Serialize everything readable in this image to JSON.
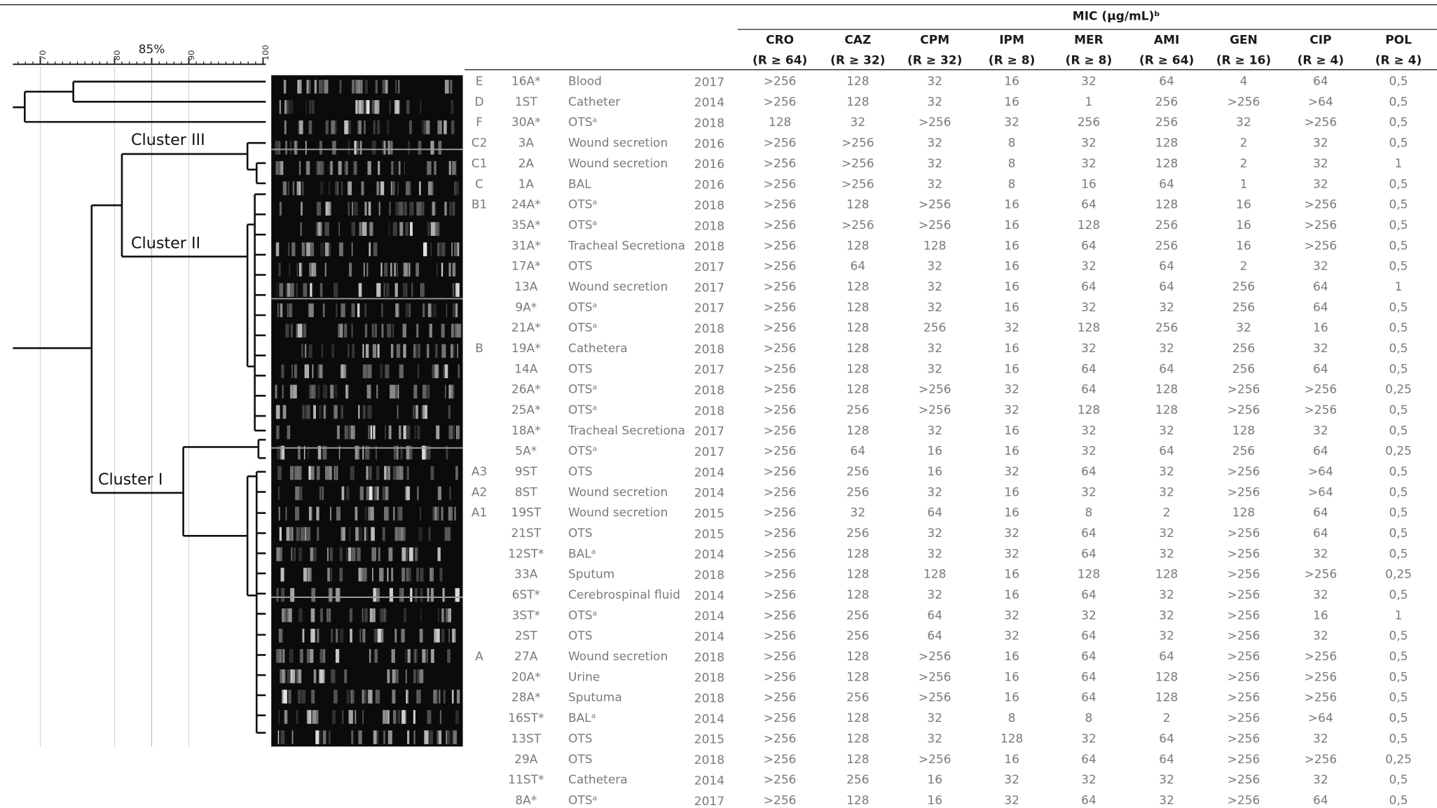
{
  "header": {
    "mic_title": "MIC (µg/mL)ᵇ",
    "columns": [
      {
        "name": "CRO",
        "breakpoint": "(R ≥ 64)"
      },
      {
        "name": "CAZ",
        "breakpoint": "(R ≥ 32)"
      },
      {
        "name": "CPM",
        "breakpoint": "(R ≥ 32)"
      },
      {
        "name": "IPM",
        "breakpoint": "(R ≥ 8)"
      },
      {
        "name": "MER",
        "breakpoint": "(R ≥ 8)"
      },
      {
        "name": "AMI",
        "breakpoint": "(R ≥ 64)"
      },
      {
        "name": "GEN",
        "breakpoint": "(R ≥ 16)"
      },
      {
        "name": "CIP",
        "breakpoint": "(R ≥ 4)"
      },
      {
        "name": "POL",
        "breakpoint": "(R ≥ 4)"
      }
    ]
  },
  "dendrogram": {
    "scale_ticks": [
      70,
      80,
      {
        "value": 85,
        "label": "85%"
      },
      90,
      100
    ],
    "clusters": [
      "Cluster III",
      "Cluster II",
      "Cluster I"
    ]
  },
  "rows": [
    {
      "cluster": "E",
      "isolate": "16A*",
      "source": "Blood",
      "year": 2017,
      "mic": [
        ">256",
        "128",
        "32",
        "16",
        "32",
        "64",
        "4",
        "64",
        "0,5"
      ]
    },
    {
      "cluster": "D",
      "isolate": "1ST",
      "source": "Catheter",
      "year": 2014,
      "mic": [
        ">256",
        "128",
        "32",
        "16",
        "1",
        "256",
        ">256",
        ">64",
        "0,5"
      ]
    },
    {
      "cluster": "F",
      "isolate": "30A*",
      "source": "OTSᵃ",
      "year": 2018,
      "mic": [
        "128",
        "32",
        ">256",
        "32",
        "256",
        "256",
        "32",
        ">256",
        "0,5"
      ]
    },
    {
      "cluster": "C2",
      "isolate": "3A",
      "source": "Wound secretion",
      "year": 2016,
      "mic": [
        ">256",
        ">256",
        "32",
        "8",
        "32",
        "128",
        "2",
        "32",
        "0,5"
      ]
    },
    {
      "cluster": "C1",
      "isolate": "2A",
      "source": "Wound secretion",
      "year": 2016,
      "mic": [
        ">256",
        ">256",
        "32",
        "8",
        "32",
        "128",
        "2",
        "32",
        "1"
      ]
    },
    {
      "cluster": "C",
      "isolate": "1A",
      "source": "BAL",
      "year": 2016,
      "mic": [
        ">256",
        ">256",
        "32",
        "8",
        "16",
        "64",
        "1",
        "32",
        "0,5"
      ]
    },
    {
      "cluster": "B1",
      "isolate": "24A*",
      "source": "OTSᵃ",
      "year": 2018,
      "mic": [
        ">256",
        "128",
        ">256",
        "16",
        "64",
        "128",
        "16",
        ">256",
        "0,5"
      ]
    },
    {
      "isolate": "35A*",
      "source": "OTSᵃ",
      "year": 2018,
      "mic": [
        ">256",
        ">256",
        ">256",
        "16",
        "128",
        "256",
        "16",
        ">256",
        "0,5"
      ]
    },
    {
      "isolate": "31A*",
      "source": "Tracheal Secretiona",
      "year": 2018,
      "mic": [
        ">256",
        "128",
        "128",
        "16",
        "64",
        "256",
        "16",
        ">256",
        "0,5"
      ]
    },
    {
      "isolate": "17A*",
      "source": "OTS",
      "year": 2017,
      "mic": [
        ">256",
        "64",
        "32",
        "16",
        "32",
        "64",
        "2",
        "32",
        "0,5"
      ]
    },
    {
      "isolate": "13A",
      "source": "Wound secretion",
      "year": 2017,
      "mic": [
        ">256",
        "128",
        "32",
        "16",
        "64",
        "64",
        "256",
        "64",
        "1"
      ]
    },
    {
      "isolate": "9A*",
      "source": "OTSᵃ",
      "year": 2017,
      "mic": [
        ">256",
        "128",
        "32",
        "16",
        "32",
        "32",
        "256",
        "64",
        "0,5"
      ]
    },
    {
      "isolate": "21A*",
      "source": "OTSᵃ",
      "year": 2018,
      "mic": [
        ">256",
        "128",
        "256",
        "32",
        "128",
        "256",
        "32",
        "16",
        "0,5"
      ]
    },
    {
      "cluster": "B",
      "isolate": "19A*",
      "source": "Cathetera",
      "year": 2018,
      "mic": [
        ">256",
        "128",
        "32",
        "16",
        "32",
        "32",
        "256",
        "32",
        "0,5"
      ]
    },
    {
      "isolate": "14A",
      "source": "OTS",
      "year": 2017,
      "mic": [
        ">256",
        "128",
        "32",
        "16",
        "64",
        "64",
        "256",
        "64",
        "0,5"
      ]
    },
    {
      "isolate": "26A*",
      "source": "OTSᵃ",
      "year": 2018,
      "mic": [
        ">256",
        "128",
        ">256",
        "32",
        "64",
        "128",
        ">256",
        ">256",
        "0,25"
      ]
    },
    {
      "isolate": "25A*",
      "source": "OTSᵃ",
      "year": 2018,
      "mic": [
        ">256",
        "256",
        ">256",
        "32",
        "128",
        "128",
        ">256",
        ">256",
        "0,5"
      ]
    },
    {
      "isolate": "18A*",
      "source": "Tracheal Secretiona",
      "year": 2017,
      "mic": [
        ">256",
        "128",
        "32",
        "16",
        "32",
        "32",
        "128",
        "32",
        "0,5"
      ]
    },
    {
      "isolate": "5A*",
      "source": "OTSᵃ",
      "year": 2017,
      "mic": [
        ">256",
        "64",
        "16",
        "16",
        "32",
        "64",
        "256",
        "64",
        "0,25"
      ]
    },
    {
      "cluster": "A3",
      "isolate": "9ST",
      "source": "OTS",
      "year": 2014,
      "mic": [
        ">256",
        "256",
        "16",
        "32",
        "64",
        "32",
        ">256",
        ">64",
        "0,5"
      ]
    },
    {
      "cluster": "A2",
      "isolate": "8ST",
      "source": "Wound secretion",
      "year": 2014,
      "mic": [
        ">256",
        "256",
        "32",
        "16",
        "32",
        "32",
        ">256",
        ">64",
        "0,5"
      ]
    },
    {
      "cluster": "A1",
      "isolate": "19ST",
      "source": "Wound secretion",
      "year": 2015,
      "mic": [
        ">256",
        "32",
        "64",
        "16",
        "8",
        "2",
        "128",
        "64",
        "0,5"
      ]
    },
    {
      "isolate": "21ST",
      "source": "OTS",
      "year": 2015,
      "mic": [
        ">256",
        "256",
        "32",
        "32",
        "64",
        "32",
        ">256",
        "64",
        "0,5"
      ]
    },
    {
      "isolate": "12ST*",
      "source": "BALᵃ",
      "year": 2014,
      "mic": [
        ">256",
        "128",
        "32",
        "32",
        "64",
        "32",
        ">256",
        "32",
        "0,5"
      ]
    },
    {
      "isolate": "33A",
      "source": "Sputum",
      "year": 2018,
      "mic": [
        ">256",
        "128",
        "128",
        "16",
        "128",
        "128",
        ">256",
        ">256",
        "0,25"
      ]
    },
    {
      "isolate": "6ST*",
      "source": "Cerebrospinal fluid",
      "year": 2014,
      "mic": [
        ">256",
        "128",
        "32",
        "16",
        "64",
        "32",
        ">256",
        "32",
        "0,5"
      ]
    },
    {
      "isolate": "3ST*",
      "source": "OTSᵃ",
      "year": 2014,
      "mic": [
        ">256",
        "256",
        "64",
        "32",
        "32",
        "32",
        ">256",
        "16",
        "1"
      ]
    },
    {
      "isolate": "2ST",
      "source": "OTS",
      "year": 2014,
      "mic": [
        ">256",
        "256",
        "64",
        "32",
        "64",
        "32",
        ">256",
        "32",
        "0,5"
      ]
    },
    {
      "cluster": "A",
      "isolate": "27A",
      "source": "Wound secretion",
      "year": 2018,
      "mic": [
        ">256",
        "128",
        ">256",
        "16",
        "64",
        "64",
        ">256",
        ">256",
        "0,5"
      ]
    },
    {
      "isolate": "20A*",
      "source": "Urine",
      "year": 2018,
      "mic": [
        ">256",
        "128",
        ">256",
        "16",
        "64",
        "128",
        ">256",
        ">256",
        "0,5"
      ]
    },
    {
      "isolate": "28A*",
      "source": "Sputuma",
      "year": 2018,
      "mic": [
        ">256",
        "256",
        ">256",
        "16",
        "64",
        "128",
        ">256",
        ">256",
        "0,5"
      ]
    },
    {
      "isolate": "16ST*",
      "source": "BALᵃ",
      "year": 2014,
      "mic": [
        ">256",
        "128",
        "32",
        "8",
        "8",
        "2",
        ">256",
        ">64",
        "0,5"
      ]
    },
    {
      "isolate": "13ST",
      "source": "OTS",
      "year": 2015,
      "mic": [
        ">256",
        "128",
        "32",
        "128",
        "32",
        "64",
        ">256",
        "32",
        "0,5"
      ]
    },
    {
      "isolate": "29A",
      "source": "OTS",
      "year": 2018,
      "mic": [
        ">256",
        "128",
        ">256",
        "16",
        "64",
        "64",
        ">256",
        ">256",
        "0,25"
      ]
    },
    {
      "isolate": "11ST*",
      "source": "Cathetera",
      "year": 2014,
      "mic": [
        ">256",
        "256",
        "16",
        "32",
        "32",
        "32",
        ">256",
        "32",
        "0,5"
      ]
    },
    {
      "isolate": "8A*",
      "source": "OTSᵃ",
      "year": 2017,
      "mic": [
        ">256",
        "128",
        "16",
        "32",
        "64",
        "32",
        ">256",
        "64",
        "0,5"
      ]
    }
  ]
}
